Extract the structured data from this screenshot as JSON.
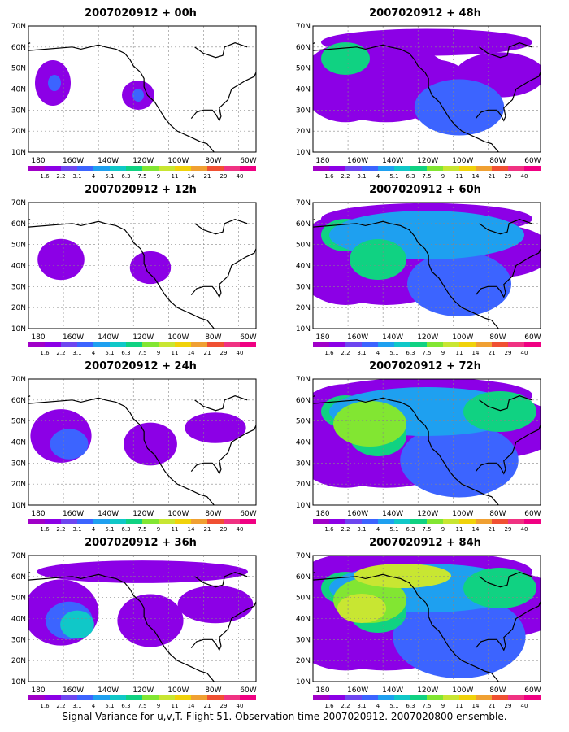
{
  "figure": {
    "footer": "Signal Variance for u,v,T. Flight 51. Observation time 2007020912. 2007020800 ensemble."
  },
  "legend": {
    "levels": [
      "1.6",
      "2.2",
      "3.1",
      "4",
      "5.1",
      "6.3",
      "7.5",
      "9",
      "11",
      "14",
      "21",
      "29",
      "40"
    ],
    "colors": [
      "#a000c8",
      "#8c00e6",
      "#6e46f0",
      "#3c64ff",
      "#1ea0f0",
      "#10c8c8",
      "#10d282",
      "#82e632",
      "#c8e632",
      "#f0d20a",
      "#f0a032",
      "#f05032",
      "#f03282",
      "#f00082"
    ]
  },
  "axes": {
    "lat_ticks": [
      "70N",
      "60N",
      "50N",
      "40N",
      "30N",
      "20N",
      "10N"
    ],
    "lon_ticks": [
      "180",
      "160W",
      "140W",
      "120W",
      "100W",
      "80W",
      "60W"
    ]
  },
  "panels": [
    {
      "title": "2007020912 + 00h",
      "level": 0
    },
    {
      "title": "2007020912 + 12h",
      "level": 1
    },
    {
      "title": "2007020912 + 24h",
      "level": 2
    },
    {
      "title": "2007020912 + 36h",
      "level": 3
    },
    {
      "title": "2007020912 + 48h",
      "level": 4
    },
    {
      "title": "2007020912 + 60h",
      "level": 5
    },
    {
      "title": "2007020912 + 72h",
      "level": 6
    },
    {
      "title": "2007020912 + 84h",
      "level": 7
    }
  ]
}
